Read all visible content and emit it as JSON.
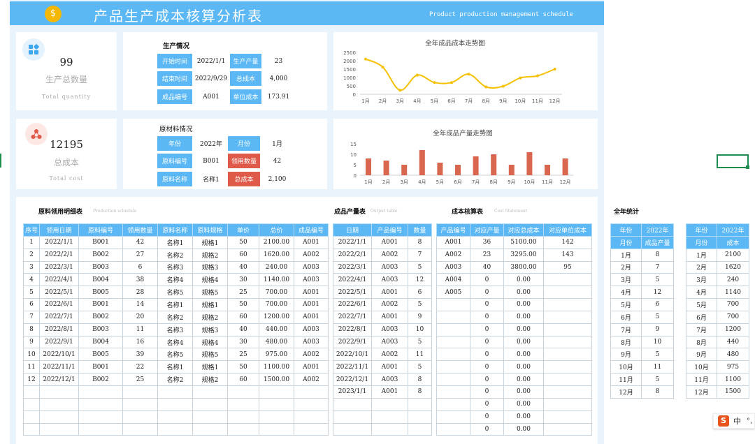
{
  "header": {
    "title": "产品生产成本核算分析表",
    "subtitle": "Product production management schedule",
    "logo_glyph": "$"
  },
  "kpi": {
    "quantity": {
      "value": "99",
      "cn": "生产总数量",
      "en": "Total quantity",
      "icon": "grid-icon"
    },
    "cost": {
      "value": "12195",
      "cn": "总成本",
      "en": "Total cost",
      "icon": "network-icon"
    }
  },
  "production": {
    "title": "生产情况",
    "rows": [
      {
        "l1": "开始时间",
        "v1": "2022/1/1",
        "l2": "生产产量",
        "v2": "23"
      },
      {
        "l1": "结束时间",
        "v1": "2022/9/29",
        "l2": "总成本",
        "v2": "4,000"
      },
      {
        "l1": "成品编号",
        "v1": "A001",
        "l2": "单位成本",
        "v2": "173.91"
      }
    ]
  },
  "material": {
    "title": "原材料情况",
    "rows": [
      {
        "l1": "年份",
        "v1": "2022年",
        "l2": "月份",
        "v2": "1月"
      },
      {
        "l1": "原料编号",
        "v1": "B001",
        "l2": "领用数量",
        "v2": "42"
      },
      {
        "l1": "原料名称",
        "v1": "名称1",
        "l2": "总成本",
        "v2": "2,100"
      }
    ]
  },
  "chart_data": [
    {
      "type": "line",
      "title": "全年成品成本走势图",
      "categories": [
        "1月",
        "2月",
        "3月",
        "4月",
        "5月",
        "6月",
        "7月",
        "8月",
        "9月",
        "10月",
        "11月",
        "12月"
      ],
      "values": [
        2100,
        1620,
        240,
        1140,
        700,
        700,
        1200,
        440,
        480,
        975,
        1100,
        1500
      ],
      "ylim": [
        0,
        2500
      ],
      "yticks": [
        0,
        500,
        1000,
        1500,
        2000,
        2500
      ],
      "color": "#f5c000"
    },
    {
      "type": "bar",
      "title": "全年成品产量走势图",
      "categories": [
        "1月",
        "2月",
        "3月",
        "4月",
        "5月",
        "6月",
        "7月",
        "8月",
        "9月",
        "10月",
        "11月",
        "12月"
      ],
      "values": [
        8,
        7,
        5,
        12,
        6,
        5,
        9,
        10,
        5,
        11,
        5,
        8
      ],
      "ylim": [
        0,
        15
      ],
      "yticks": [
        0,
        5,
        10,
        15
      ],
      "color": "#d9674f"
    }
  ],
  "usage": {
    "title": "原料领用明细表",
    "subtitle": "Production schedule",
    "headers": [
      "序号",
      "领用日期",
      "原料编号",
      "领用数量",
      "原料名称",
      "原料规格",
      "单价",
      "总价",
      "成品编号"
    ],
    "rows": [
      [
        "1",
        "2022/1/1",
        "B001",
        "42",
        "名称1",
        "规格1",
        "50",
        "2100.00",
        "A001"
      ],
      [
        "2",
        "2022/2/1",
        "B002",
        "27",
        "名称2",
        "规格2",
        "60",
        "1620.00",
        "A002"
      ],
      [
        "3",
        "2022/3/1",
        "B003",
        "6",
        "名称3",
        "规格3",
        "40",
        "240.00",
        "A003"
      ],
      [
        "4",
        "2022/4/1",
        "B004",
        "38",
        "名称4",
        "规格4",
        "30",
        "1140.00",
        "A003"
      ],
      [
        "5",
        "2022/5/1",
        "B005",
        "28",
        "名称5",
        "规格5",
        "25",
        "700.00",
        "A001"
      ],
      [
        "6",
        "2022/6/1",
        "B001",
        "14",
        "名称1",
        "规格1",
        "50",
        "700.00",
        "A001"
      ],
      [
        "7",
        "2022/7/1",
        "B002",
        "20",
        "名称2",
        "规格2",
        "60",
        "1200.00",
        "A001"
      ],
      [
        "8",
        "2022/8/1",
        "B003",
        "11",
        "名称3",
        "规格3",
        "40",
        "440.00",
        "A003"
      ],
      [
        "9",
        "2022/9/1",
        "B004",
        "16",
        "名称4",
        "规格4",
        "30",
        "480.00",
        "A003"
      ],
      [
        "10",
        "2022/10/1",
        "B005",
        "39",
        "名称5",
        "规格5",
        "25",
        "975.00",
        "A002"
      ],
      [
        "11",
        "2022/11/1",
        "B001",
        "22",
        "名称1",
        "规格1",
        "50",
        "1100.00",
        "A001"
      ],
      [
        "12",
        "2022/12/1",
        "B002",
        "25",
        "名称2",
        "规格2",
        "60",
        "1500.00",
        "A002"
      ],
      [
        "",
        "",
        "",
        "",
        "",
        "",
        "",
        "",
        ""
      ],
      [
        "",
        "",
        "",
        "",
        "",
        "",
        "",
        "",
        ""
      ],
      [
        "",
        "",
        "",
        "",
        "",
        "",
        "",
        "",
        ""
      ],
      [
        "",
        "",
        "",
        "",
        "",
        "",
        "",
        "",
        ""
      ]
    ]
  },
  "output": {
    "title": "成品产量表",
    "subtitle": "Output table",
    "headers": [
      "日期",
      "产品编号",
      "数量"
    ],
    "rows": [
      [
        "2022/1/1",
        "A001",
        "8"
      ],
      [
        "2022/2/1",
        "A002",
        "7"
      ],
      [
        "2022/3/1",
        "A003",
        "5"
      ],
      [
        "2022/4/1",
        "A003",
        "12"
      ],
      [
        "2022/5/1",
        "A001",
        "6"
      ],
      [
        "2022/6/1",
        "A002",
        "5"
      ],
      [
        "2022/7/1",
        "A001",
        "9"
      ],
      [
        "2022/8/1",
        "A003",
        "10"
      ],
      [
        "2022/9/1",
        "A003",
        "5"
      ],
      [
        "2022/10/1",
        "A002",
        "11"
      ],
      [
        "2022/11/1",
        "A001",
        "5"
      ],
      [
        "2022/12/1",
        "A003",
        "8"
      ],
      [
        "2023/1/1",
        "A001",
        "8"
      ],
      [
        "",
        "",
        ""
      ],
      [
        "",
        "",
        ""
      ],
      [
        "",
        "",
        ""
      ]
    ]
  },
  "cost_table": {
    "title": "成本核算表",
    "subtitle": "Cost Statement",
    "headers": [
      "产品编号",
      "对应产量",
      "对应总成本",
      "对应单位成本"
    ],
    "rows": [
      [
        "A001",
        "36",
        "5100.00",
        "142"
      ],
      [
        "A002",
        "23",
        "3295.00",
        "143"
      ],
      [
        "A003",
        "40",
        "3800.00",
        "95"
      ],
      [
        "A004",
        "0",
        "0.00",
        ""
      ],
      [
        "A005",
        "0",
        "0.00",
        ""
      ],
      [
        "",
        "0",
        "0.00",
        ""
      ],
      [
        "",
        "0",
        "0.00",
        ""
      ],
      [
        "",
        "0",
        "0.00",
        ""
      ],
      [
        "",
        "0",
        "0.00",
        ""
      ],
      [
        "",
        "0",
        "0.00",
        ""
      ],
      [
        "",
        "0",
        "0.00",
        ""
      ],
      [
        "",
        "0",
        "0.00",
        ""
      ],
      [
        "",
        "0",
        "0.00",
        ""
      ],
      [
        "",
        "0",
        "0.00",
        ""
      ],
      [
        "",
        "0",
        "0.00",
        ""
      ],
      [
        "",
        "0",
        "0.00",
        ""
      ]
    ]
  },
  "annual": {
    "title": "全年统计",
    "t1": {
      "h1": [
        "年份",
        "2022年"
      ],
      "h2": [
        "月份",
        "成品产量"
      ],
      "rows": [
        [
          "1月",
          "8"
        ],
        [
          "2月",
          "7"
        ],
        [
          "3月",
          "5"
        ],
        [
          "4月",
          "12"
        ],
        [
          "5月",
          "6"
        ],
        [
          "6月",
          "5"
        ],
        [
          "7月",
          "9"
        ],
        [
          "8月",
          "10"
        ],
        [
          "9月",
          "5"
        ],
        [
          "10月",
          "11"
        ],
        [
          "11月",
          "5"
        ],
        [
          "12月",
          "8"
        ]
      ]
    },
    "t2": {
      "h1": [
        "年份",
        "2022年"
      ],
      "h2": [
        "月份",
        "成本"
      ],
      "rows": [
        [
          "1月",
          "2100"
        ],
        [
          "2月",
          "1620"
        ],
        [
          "3月",
          "240"
        ],
        [
          "4月",
          "1140"
        ],
        [
          "5月",
          "700"
        ],
        [
          "6月",
          "700"
        ],
        [
          "7月",
          "1200"
        ],
        [
          "8月",
          "440"
        ],
        [
          "9月",
          "480"
        ],
        [
          "10月",
          "975"
        ],
        [
          "11月",
          "1100"
        ],
        [
          "12月",
          "1500"
        ]
      ]
    }
  },
  "ime": {
    "label": "中",
    "logo": "S",
    "punct": "°,"
  }
}
